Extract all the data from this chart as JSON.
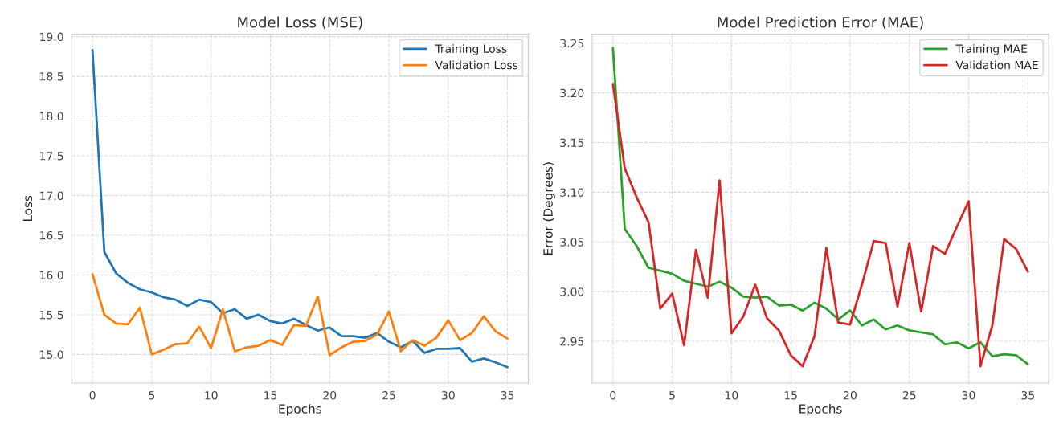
{
  "chart_data": [
    {
      "type": "line",
      "title": "Model Loss (MSE)",
      "xlabel": "Epochs",
      "ylabel": "Loss",
      "x": [
        0,
        1,
        2,
        3,
        4,
        5,
        6,
        7,
        8,
        9,
        10,
        11,
        12,
        13,
        14,
        15,
        16,
        17,
        18,
        19,
        20,
        21,
        22,
        23,
        24,
        25,
        26,
        27,
        28,
        29,
        30,
        31,
        32,
        33,
        34,
        35
      ],
      "series": [
        {
          "name": "Training Loss",
          "color": "#1f77b4",
          "values": [
            18.83,
            16.29,
            16.02,
            15.9,
            15.82,
            15.78,
            15.72,
            15.69,
            15.61,
            15.69,
            15.66,
            15.52,
            15.57,
            15.45,
            15.5,
            15.42,
            15.39,
            15.45,
            15.37,
            15.3,
            15.34,
            15.23,
            15.23,
            15.21,
            15.27,
            15.16,
            15.09,
            15.17,
            15.02,
            15.07,
            15.07,
            15.08,
            14.91,
            14.95,
            14.9,
            14.84
          ]
        },
        {
          "name": "Validation Loss",
          "color": "#ff7f0e",
          "values": [
            16.01,
            15.5,
            15.39,
            15.38,
            15.59,
            15.0,
            15.06,
            15.13,
            15.14,
            15.35,
            15.08,
            15.57,
            15.04,
            15.09,
            15.11,
            15.18,
            15.12,
            15.37,
            15.36,
            15.73,
            14.99,
            15.09,
            15.16,
            15.17,
            15.25,
            15.54,
            15.04,
            15.18,
            15.11,
            15.21,
            15.43,
            15.18,
            15.27,
            15.48,
            15.29,
            15.2
          ]
        }
      ],
      "xlim": [
        -1.75,
        36.75
      ],
      "xticks": [
        0,
        5,
        10,
        15,
        20,
        25,
        30,
        35
      ],
      "ylim": [
        14.64,
        19.03
      ],
      "yticks": [
        {
          "value": 15.0,
          "label": "15.0"
        },
        {
          "value": 15.5,
          "label": "15.5"
        },
        {
          "value": 16.0,
          "label": "16.0"
        },
        {
          "value": 16.5,
          "label": "16.5"
        },
        {
          "value": 17.0,
          "label": "17.0"
        },
        {
          "value": 17.5,
          "label": "17.5"
        },
        {
          "value": 18.0,
          "label": "18.0"
        },
        {
          "value": 18.5,
          "label": "18.5"
        },
        {
          "value": 19.0,
          "label": "19.0"
        }
      ],
      "grid": true,
      "legend": "top right",
      "line_style": "solid"
    },
    {
      "type": "line",
      "title": "Model Prediction Error (MAE)",
      "xlabel": "Epochs",
      "ylabel": "Error (Degrees)",
      "x": [
        0,
        1,
        2,
        3,
        4,
        5,
        6,
        7,
        8,
        9,
        10,
        11,
        12,
        13,
        14,
        15,
        16,
        17,
        18,
        19,
        20,
        21,
        22,
        23,
        24,
        25,
        26,
        27,
        28,
        29,
        30,
        31,
        32,
        33,
        34,
        35
      ],
      "series": [
        {
          "name": "Training MAE",
          "color": "#2ca02c",
          "values": [
            3.245,
            3.063,
            3.046,
            3.024,
            3.021,
            3.018,
            3.011,
            3.008,
            3.005,
            3.01,
            3.004,
            2.995,
            2.994,
            2.995,
            2.986,
            2.987,
            2.981,
            2.989,
            2.983,
            2.972,
            2.981,
            2.966,
            2.972,
            2.962,
            2.966,
            2.961,
            2.959,
            2.957,
            2.947,
            2.949,
            2.943,
            2.949,
            2.935,
            2.937,
            2.936,
            2.927
          ]
        },
        {
          "name": "Validation MAE",
          "color": "#d62728",
          "values": [
            3.209,
            3.124,
            3.095,
            3.07,
            2.983,
            2.998,
            2.946,
            3.042,
            2.994,
            3.112,
            2.958,
            2.975,
            3.007,
            2.973,
            2.961,
            2.936,
            2.925,
            2.955,
            3.044,
            2.969,
            2.967,
            3.007,
            3.051,
            3.049,
            2.985,
            3.049,
            2.98,
            3.046,
            3.038,
            3.065,
            3.091,
            2.925,
            2.966,
            3.053,
            3.043,
            3.02
          ]
        }
      ],
      "xlim": [
        -1.75,
        36.75
      ],
      "xticks": [
        0,
        5,
        10,
        15,
        20,
        25,
        30,
        35
      ],
      "ylim": [
        2.908,
        3.259
      ],
      "yticks": [
        {
          "value": 2.95,
          "label": "2.95"
        },
        {
          "value": 3.0,
          "label": "3.00"
        },
        {
          "value": 3.05,
          "label": "3.05"
        },
        {
          "value": 3.1,
          "label": "3.10"
        },
        {
          "value": 3.15,
          "label": "3.15"
        },
        {
          "value": 3.2,
          "label": "3.20"
        },
        {
          "value": 3.25,
          "label": "3.25"
        }
      ],
      "grid": true,
      "legend": "top right",
      "line_style": "solid"
    }
  ]
}
